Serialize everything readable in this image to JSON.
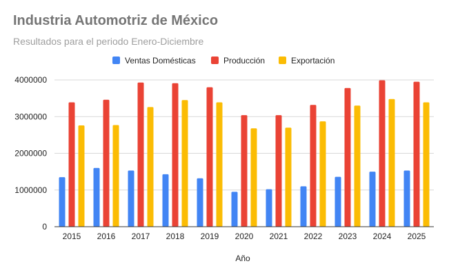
{
  "chart_data": {
    "type": "bar",
    "title": "Industria Automotriz de México",
    "subtitle": "Resultados para el periodo Enero-Diciembre",
    "xlabel": "Año",
    "ylabel": "",
    "ylim": [
      0,
      4000000
    ],
    "yticks": [
      "0",
      "1000000",
      "2000000",
      "3000000",
      "4000000"
    ],
    "ytick_values": [
      0,
      1000000,
      2000000,
      3000000,
      4000000
    ],
    "legend_position": "top-center",
    "grid": true,
    "categories": [
      "2015",
      "2016",
      "2017",
      "2018",
      "2019",
      "2020",
      "2021",
      "2022",
      "2023",
      "2024",
      "2025"
    ],
    "series": [
      {
        "name": "Ventas Domésticas",
        "color": "#4285f4",
        "values": [
          1350000,
          1600000,
          1530000,
          1430000,
          1320000,
          950000,
          1020000,
          1100000,
          1360000,
          1500000,
          1530000
        ]
      },
      {
        "name": "Producción",
        "color": "#ea4335",
        "values": [
          3390000,
          3460000,
          3930000,
          3910000,
          3800000,
          3040000,
          3040000,
          3320000,
          3780000,
          3990000,
          3950000
        ]
      },
      {
        "name": "Exportación",
        "color": "#fbbc04",
        "values": [
          2760000,
          2770000,
          3260000,
          3450000,
          3390000,
          2680000,
          2700000,
          2870000,
          3300000,
          3480000,
          3390000
        ]
      }
    ]
  }
}
